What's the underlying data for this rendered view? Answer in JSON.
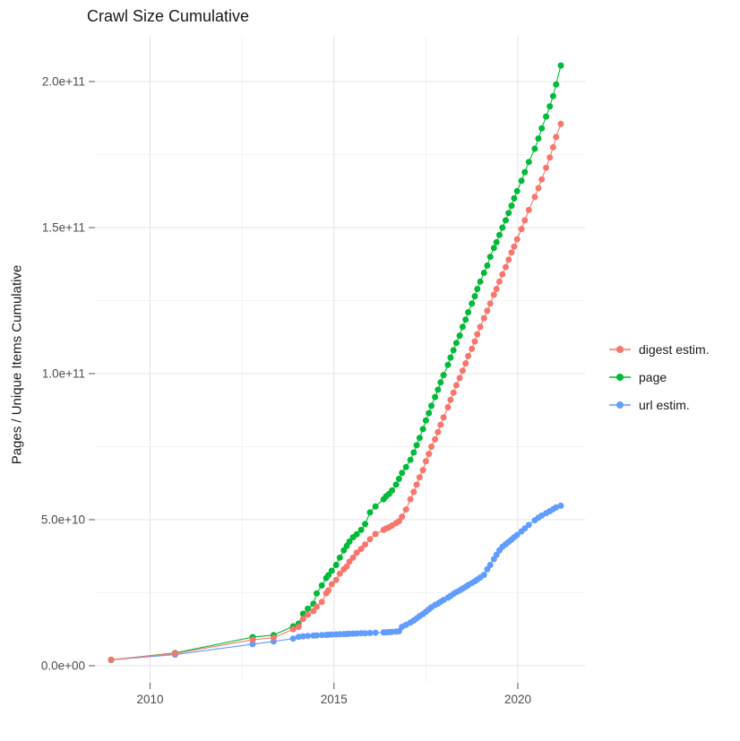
{
  "chart_data": {
    "type": "line",
    "title": "Crawl Size Cumulative",
    "ylabel": "Pages / Unique Items Cumulative",
    "xlabel": "",
    "legend_position": "right",
    "grid": true,
    "x_ticks": [
      {
        "year": 2010,
        "label": "2010"
      },
      {
        "year": 2015,
        "label": "2015"
      },
      {
        "year": 2020,
        "label": "2020"
      }
    ],
    "x_minor_years": [
      2012.5,
      2017.5
    ],
    "y_ticks": [
      {
        "value_e9": 0,
        "label": "0.0e+00"
      },
      {
        "value_e9": 50,
        "label": "5.0e+10"
      },
      {
        "value_e9": 100,
        "label": "1.0e+11"
      },
      {
        "value_e9": 150,
        "label": "1.5e+11"
      },
      {
        "value_e9": 200,
        "label": "2.0e+11"
      }
    ],
    "y_minor_e9": [
      25,
      75,
      125,
      175
    ],
    "x_range_years": [
      2008.5,
      2021.8
    ],
    "y_range_e9": [
      0,
      216
    ],
    "unit": "pages (value_e9 = billions, 1e9)",
    "years": [
      2008.94,
      2010.68,
      2012.79,
      2013.36,
      2013.89,
      2014.04,
      2014.16,
      2014.29,
      2014.44,
      2014.53,
      2014.67,
      2014.79,
      2014.85,
      2014.94,
      2015.06,
      2015.16,
      2015.27,
      2015.35,
      2015.42,
      2015.52,
      2015.62,
      2015.74,
      2015.85,
      2015.98,
      2016.13,
      2016.35,
      2016.42,
      2016.5,
      2016.58,
      2016.69,
      2016.77,
      2016.85,
      2016.96,
      2017.08,
      2017.17,
      2017.25,
      2017.33,
      2017.42,
      2017.5,
      2017.58,
      2017.65,
      2017.75,
      2017.83,
      2017.9,
      2017.98,
      2018.1,
      2018.17,
      2018.25,
      2018.33,
      2018.42,
      2018.5,
      2018.58,
      2018.65,
      2018.75,
      2018.83,
      2018.9,
      2018.98,
      2019.08,
      2019.17,
      2019.25,
      2019.35,
      2019.42,
      2019.5,
      2019.58,
      2019.67,
      2019.75,
      2019.83,
      2019.9,
      2019.98,
      2020.1,
      2020.19,
      2020.3,
      2020.46,
      2020.56,
      2020.65,
      2020.77,
      2020.87,
      2020.96,
      2021.04,
      2021.17
    ],
    "series": [
      {
        "id": "digest",
        "label": "digest estim.",
        "color": "#F8766D",
        "values_e9": [
          2.1,
          4.2,
          8.9,
          9.6,
          12.5,
          13.3,
          16,
          17.5,
          18.7,
          20.2,
          21.8,
          24.8,
          25.8,
          27.9,
          29.4,
          31.5,
          33,
          34,
          35.6,
          37,
          38.7,
          40,
          41.5,
          43.3,
          45.1,
          46.5,
          47,
          47.4,
          48,
          48.8,
          49.5,
          51,
          53.5,
          57,
          59.5,
          62,
          64.5,
          67,
          70,
          72.5,
          75,
          77.5,
          80,
          82.5,
          85,
          88.5,
          91,
          93.5,
          96,
          98.5,
          101,
          103.5,
          106,
          108.5,
          111,
          113.5,
          116,
          119,
          121.5,
          124,
          127,
          129,
          131.5,
          134,
          136.5,
          139,
          141.5,
          143.5,
          146,
          149.5,
          152.5,
          156,
          160.5,
          163.5,
          166.5,
          170.5,
          174,
          177.5,
          181,
          185.5
        ]
      },
      {
        "id": "page",
        "label": "page",
        "color": "#00BA38",
        "values_e9": [
          2.0,
          4.4,
          9.8,
          10.5,
          13.5,
          14.4,
          17.8,
          19.5,
          21.2,
          24.8,
          27.5,
          30,
          31,
          32.5,
          34.5,
          37,
          39.5,
          41,
          42.5,
          44,
          45,
          46.5,
          48.5,
          52.5,
          54.5,
          57,
          58,
          58.8,
          60,
          62,
          64,
          66,
          68,
          70.5,
          73,
          75.5,
          78,
          81,
          84,
          86.5,
          89,
          92,
          94.5,
          97,
          99.5,
          103,
          105.5,
          108,
          110.5,
          113,
          116,
          118.5,
          121,
          124,
          126.5,
          129,
          131.5,
          134.5,
          137,
          140,
          143,
          145,
          147.5,
          150,
          152.5,
          155,
          157.5,
          160,
          162.5,
          166,
          169,
          172.5,
          177,
          180.5,
          184,
          188,
          191.5,
          195,
          199,
          205.5
        ]
      },
      {
        "id": "url",
        "label": "url estim.",
        "color": "#619CFF",
        "values_e9": [
          2.0,
          3.8,
          7.4,
          8.3,
          9.3,
          9.9,
          10.1,
          10.2,
          10.3,
          10.4,
          10.5,
          10.55,
          10.6,
          10.7,
          10.75,
          10.8,
          10.85,
          10.9,
          10.95,
          11,
          11.05,
          11.1,
          11.15,
          11.2,
          11.3,
          11.4,
          11.45,
          11.5,
          11.6,
          11.7,
          11.8,
          13.3,
          14,
          14.8,
          15.5,
          16.2,
          17,
          17.7,
          18.5,
          19.3,
          20,
          20.8,
          21.3,
          21.9,
          22.5,
          23.3,
          23.9,
          24.6,
          25.2,
          25.8,
          26.4,
          27,
          27.6,
          28.3,
          28.9,
          29.5,
          30.2,
          31.1,
          33,
          34.5,
          36.5,
          38,
          39.5,
          40.7,
          41.6,
          42.4,
          43.2,
          44,
          44.8,
          46,
          47,
          48.2,
          49.8,
          50.7,
          51.4,
          52.2,
          52.9,
          53.6,
          54.2,
          54.8
        ]
      }
    ],
    "colors": {
      "digest_estim": "#F8766D",
      "page": "#00BA38",
      "url_estim": "#619CFF",
      "grid_major": "#E4E4E4",
      "grid_minor": "#F1F1F1",
      "tick_text": "#4D4D4D",
      "text": "#1A1A1A"
    }
  }
}
